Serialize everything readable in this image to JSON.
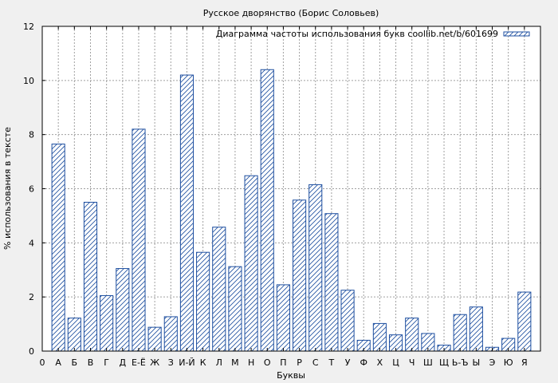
{
  "chart_data": {
    "type": "bar",
    "title": "Русское дворянство (Борис Соловьев)",
    "xlabel": "Буквы",
    "ylabel": "% использования в тексте",
    "legend": {
      "label": "Диаграмма частоты использования букв coollib.net/b/601699",
      "position": "top-right"
    },
    "ylim": [
      0,
      12
    ],
    "yticks": [
      0,
      2,
      4,
      6,
      8,
      10,
      12
    ],
    "grid": true,
    "categories": [
      "0",
      "А",
      "Б",
      "В",
      "Г",
      "Д",
      "Е-Ё",
      "Ж",
      "З",
      "И-Й",
      "К",
      "Л",
      "М",
      "Н",
      "О",
      "П",
      "Р",
      "С",
      "Т",
      "У",
      "Ф",
      "Х",
      "Ц",
      "Ч",
      "Ш",
      "Щ",
      "Ь-Ъ",
      "Ы",
      "Э",
      "Ю",
      "Я"
    ],
    "values": [
      0,
      7.65,
      1.22,
      5.5,
      2.05,
      3.05,
      8.2,
      0.88,
      1.27,
      10.2,
      3.65,
      4.58,
      3.12,
      6.48,
      10.4,
      2.45,
      5.58,
      6.15,
      5.08,
      2.25,
      0.4,
      1.02,
      0.6,
      1.22,
      0.65,
      0.22,
      1.35,
      1.63,
      0.14,
      0.47,
      2.18
    ],
    "colors": {
      "bar": "#1e4fa0",
      "background": "#f0f0f0",
      "plot": "#ffffff"
    }
  }
}
